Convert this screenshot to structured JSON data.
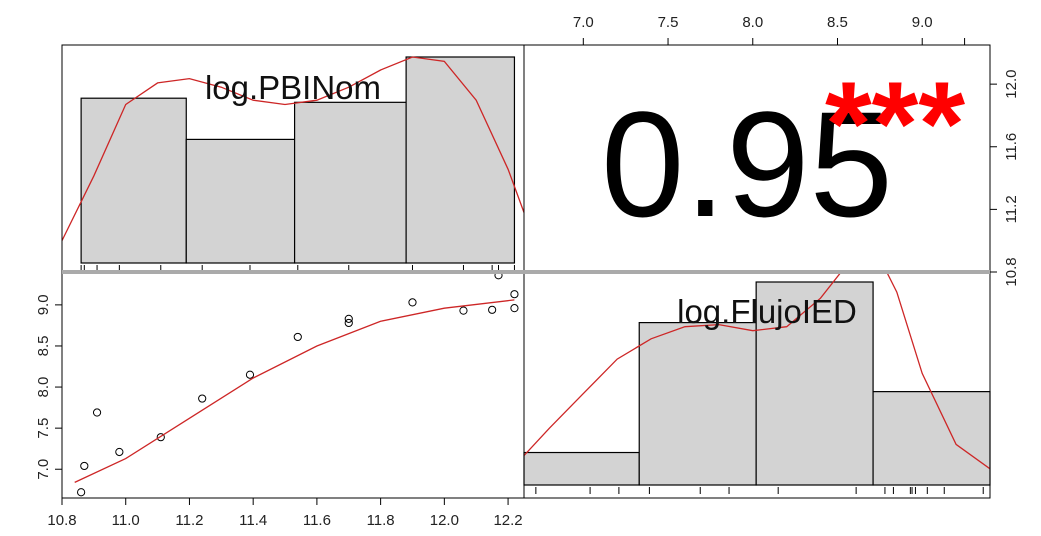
{
  "chart_data": {
    "type": "scatter",
    "variables": [
      "log.PBINom",
      "log.FlujoIED"
    ],
    "axes": {
      "bottom_ticks": [
        "10.8",
        "11.0",
        "11.2",
        "11.4",
        "11.6",
        "11.8",
        "12.0",
        "12.2"
      ],
      "top_ticks": [
        "7.0",
        "7.5",
        "8.0",
        "8.5",
        "9.0"
      ],
      "left_ticks": [
        "7.0",
        "7.5",
        "8.0",
        "8.5",
        "9.0"
      ],
      "right_ticks": [
        "10.8",
        "11.2",
        "11.6",
        "12.0"
      ],
      "x_range_pbi": [
        10.8,
        12.25
      ],
      "x_range_flujo": [
        6.65,
        9.4
      ],
      "y_range_flujo": [
        6.65,
        9.4
      ],
      "y_range_pbi": [
        10.8,
        12.25
      ]
    },
    "correlation": {
      "value": "0.95",
      "stars": "***"
    },
    "scatter": {
      "x": [
        10.86,
        10.87,
        10.91,
        10.98,
        11.11,
        11.24,
        11.39,
        11.54,
        11.7,
        11.7,
        11.9,
        12.06,
        12.15,
        12.17,
        12.22,
        12.22
      ],
      "y": [
        6.72,
        7.04,
        7.69,
        7.21,
        7.39,
        7.86,
        8.15,
        8.61,
        8.78,
        8.83,
        9.03,
        8.93,
        8.94,
        9.36,
        8.96,
        9.13
      ],
      "smooth_x": [
        10.84,
        11.0,
        11.2,
        11.4,
        11.6,
        11.8,
        12.0,
        12.22
      ],
      "smooth_y": [
        6.84,
        7.13,
        7.62,
        8.11,
        8.5,
        8.8,
        8.96,
        9.06
      ]
    },
    "hist_pbi": {
      "bins": [
        [
          10.86,
          11.19
        ],
        [
          11.19,
          11.53
        ],
        [
          11.53,
          11.88
        ],
        [
          11.88,
          12.22
        ]
      ],
      "heights": [
        0.8,
        0.6,
        0.78,
        1.0
      ],
      "rug": [
        10.86,
        10.87,
        10.91,
        10.98,
        11.11,
        11.24,
        11.39,
        11.54,
        11.7,
        11.9,
        12.06,
        12.15,
        12.17,
        12.22
      ],
      "density_x": [
        10.8,
        10.9,
        11.0,
        11.1,
        11.2,
        11.3,
        11.4,
        11.5,
        11.6,
        11.7,
        11.8,
        11.9,
        12.0,
        12.1,
        12.2,
        12.25
      ],
      "density_y": [
        0.15,
        0.45,
        0.78,
        0.88,
        0.9,
        0.86,
        0.8,
        0.78,
        0.8,
        0.86,
        0.94,
        1.0,
        0.98,
        0.8,
        0.48,
        0.28
      ]
    },
    "hist_flujo": {
      "bins": [
        [
          6.65,
          7.33
        ],
        [
          7.33,
          8.02
        ],
        [
          8.02,
          8.71
        ],
        [
          8.71,
          9.4
        ]
      ],
      "heights": [
        0.16,
        0.8,
        1.0,
        0.46
      ],
      "rug": [
        6.72,
        7.04,
        7.21,
        7.39,
        7.69,
        7.86,
        8.15,
        8.61,
        8.78,
        8.83,
        8.93,
        8.94,
        8.96,
        9.03,
        9.13,
        9.36
      ],
      "density_x": [
        6.6,
        6.8,
        7.0,
        7.2,
        7.4,
        7.6,
        7.8,
        8.0,
        8.2,
        8.4,
        8.55,
        8.7,
        8.85,
        9.0,
        9.2,
        9.45
      ],
      "density_y": [
        0.1,
        0.28,
        0.45,
        0.62,
        0.72,
        0.78,
        0.79,
        0.76,
        0.78,
        0.92,
        1.08,
        1.2,
        0.95,
        0.55,
        0.2,
        0.05
      ]
    },
    "colors": {
      "bar_fill": "#d3d3d3",
      "bar_stroke": "#000000",
      "smooth_line": "#cd2626",
      "stars": "#ff0000",
      "panel_border": "#000000",
      "separator": "#aaaaaa"
    }
  }
}
